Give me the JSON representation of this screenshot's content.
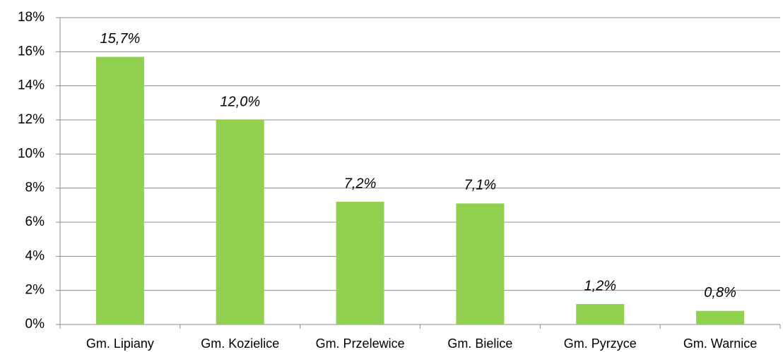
{
  "chart_data": {
    "type": "bar",
    "categories": [
      "Gm. Lipiany",
      "Gm. Kozielice",
      "Gm. Przelewice",
      "Gm. Bielice",
      "Gm. Pyrzyce",
      "Gm. Warnice"
    ],
    "values": [
      15.7,
      12.0,
      7.2,
      7.1,
      1.2,
      0.8
    ],
    "value_labels": [
      "15,7%",
      "12,0%",
      "7,2%",
      "7,1%",
      "1,2%",
      "0,8%"
    ],
    "color": "#92d050",
    "ylim": [
      0,
      18
    ],
    "yticks": [
      {
        "value": 0,
        "label": "0%"
      },
      {
        "value": 2,
        "label": "2%"
      },
      {
        "value": 4,
        "label": "4%"
      },
      {
        "value": 6,
        "label": "6%"
      },
      {
        "value": 8,
        "label": "8%"
      },
      {
        "value": 10,
        "label": "10%"
      },
      {
        "value": 12,
        "label": "12%"
      },
      {
        "value": 14,
        "label": "14%"
      },
      {
        "value": 16,
        "label": "16%"
      },
      {
        "value": 18,
        "label": "18%"
      }
    ],
    "grid": true
  }
}
